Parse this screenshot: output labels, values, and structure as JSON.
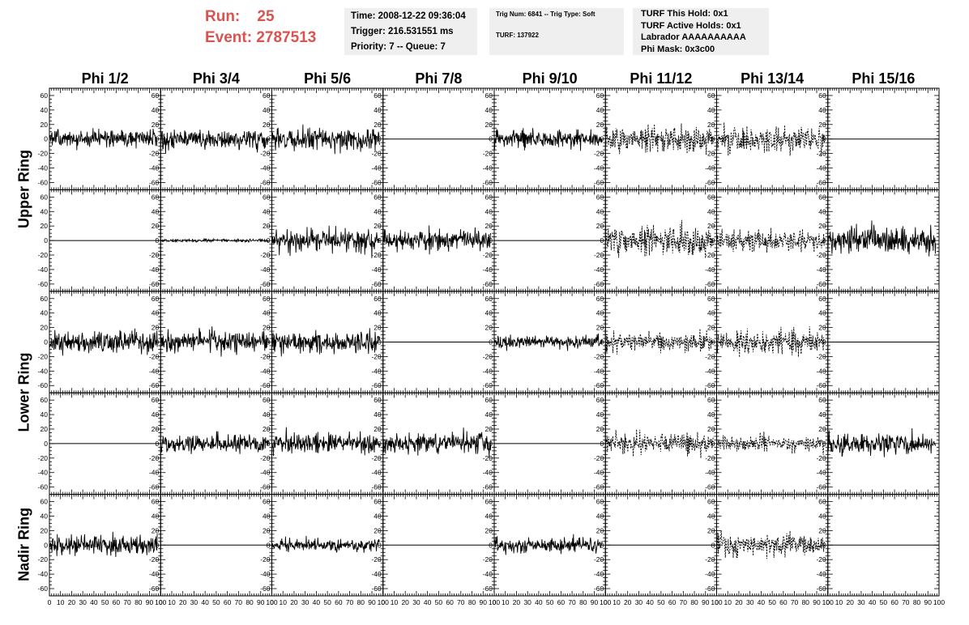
{
  "header": {
    "run_label": "Run:",
    "run_value": "25",
    "event_label": "Event:",
    "event_value": "2787513"
  },
  "time_box": {
    "time": "Time: 2008-12-22 09:36:04",
    "trigger": "Trigger: 216.531551 ms",
    "priority": "Priority: 7 -- Queue: 7"
  },
  "trig_box": {
    "trig": "Trig Num: 6841 -- Trig Type: Soft",
    "turf": "TURF: 137922"
  },
  "turf_box": {
    "this_hold": "TURF This Hold: 0x1",
    "active_holds": "TURF Active Holds: 0x1",
    "labrador": "Labrador AAAAAAAAAA",
    "phi_mask": "Phi Mask: 0x3c00"
  },
  "columns": [
    "Phi 1/2",
    "Phi 3/4",
    "Phi 5/6",
    "Phi 7/8",
    "Phi 9/10",
    "Phi 11/12",
    "Phi 13/14",
    "Phi 15/16"
  ],
  "ring_labels": [
    "Upper Ring",
    "Lower Ring",
    "Nadir Ring"
  ],
  "colors": {
    "text_red": "#d9534f",
    "box_bg": "#efefef",
    "trace": "#000000"
  },
  "chart_data": {
    "type": "line",
    "description_note": "8x5 grid of waveform panels (rows 1-2 Upper Ring, rows 3-4 Lower Ring, row 5 Nadir Ring)",
    "xlim": [
      0,
      100
    ],
    "ylim": [
      -70,
      70
    ],
    "x_ticks": [
      0,
      10,
      20,
      30,
      40,
      50,
      60,
      70,
      80,
      90,
      100
    ],
    "y_ticks": [
      -60,
      -40,
      -20,
      0,
      20,
      40,
      60
    ],
    "x_tick_labels": [
      "0",
      "10",
      "20",
      "30",
      "40",
      "50",
      "60",
      "70",
      "80",
      "90",
      "100"
    ],
    "y_tick_labels": [
      "-60",
      "-40",
      "-20",
      "0",
      "20",
      "40",
      "60"
    ],
    "panels": [
      [
        {
          "style": "solid",
          "amp": 18,
          "seed": 1
        },
        {
          "style": "solid",
          "amp": 20,
          "seed": 2
        },
        {
          "style": "solid",
          "amp": 22,
          "seed": 3
        },
        {
          "style": "flat",
          "amp": 0,
          "seed": 4
        },
        {
          "style": "solid",
          "amp": 18,
          "seed": 5
        },
        {
          "style": "dashed",
          "amp": 25,
          "seed": 6
        },
        {
          "style": "dashed",
          "amp": 25,
          "seed": 7
        },
        {
          "style": "flat",
          "amp": 0,
          "seed": 8
        }
      ],
      [
        {
          "style": "flat",
          "amp": 0,
          "seed": 9
        },
        {
          "style": "solid",
          "amp": 3,
          "seed": 10
        },
        {
          "style": "solid",
          "amp": 22,
          "seed": 11
        },
        {
          "style": "solid",
          "amp": 20,
          "seed": 12
        },
        {
          "style": "flat",
          "amp": 0,
          "seed": 13
        },
        {
          "style": "dashed",
          "amp": 28,
          "seed": 14
        },
        {
          "style": "dashed",
          "amp": 20,
          "seed": 15
        },
        {
          "style": "solid",
          "amp": 28,
          "seed": 16
        }
      ],
      [
        {
          "style": "solid",
          "amp": 20,
          "seed": 17
        },
        {
          "style": "solid",
          "amp": 20,
          "seed": 18
        },
        {
          "style": "solid",
          "amp": 22,
          "seed": 19
        },
        {
          "style": "flat",
          "amp": 0,
          "seed": 20
        },
        {
          "style": "solid",
          "amp": 12,
          "seed": 21
        },
        {
          "style": "dashed",
          "amp": 18,
          "seed": 22
        },
        {
          "style": "dashed",
          "amp": 25,
          "seed": 23
        },
        {
          "style": "flat",
          "amp": 0,
          "seed": 24
        }
      ],
      [
        {
          "style": "flat",
          "amp": 0,
          "seed": 25
        },
        {
          "style": "solid",
          "amp": 18,
          "seed": 26
        },
        {
          "style": "solid",
          "amp": 20,
          "seed": 27
        },
        {
          "style": "solid",
          "amp": 20,
          "seed": 28
        },
        {
          "style": "flat",
          "amp": 0,
          "seed": 29
        },
        {
          "style": "dashed",
          "amp": 20,
          "seed": 30
        },
        {
          "style": "dashed",
          "amp": 15,
          "seed": 31
        },
        {
          "style": "solid",
          "amp": 20,
          "seed": 32
        }
      ],
      [
        {
          "style": "solid",
          "amp": 20,
          "seed": 33
        },
        {
          "style": "flat",
          "amp": 0,
          "seed": 34
        },
        {
          "style": "solid",
          "amp": 12,
          "seed": 35
        },
        {
          "style": "flat",
          "amp": 0,
          "seed": 36
        },
        {
          "style": "solid",
          "amp": 14,
          "seed": 37
        },
        {
          "style": "flat",
          "amp": 0,
          "seed": 38
        },
        {
          "style": "dashed",
          "amp": 22,
          "seed": 39
        },
        {
          "style": "flat",
          "amp": 0,
          "seed": 40
        }
      ]
    ]
  }
}
